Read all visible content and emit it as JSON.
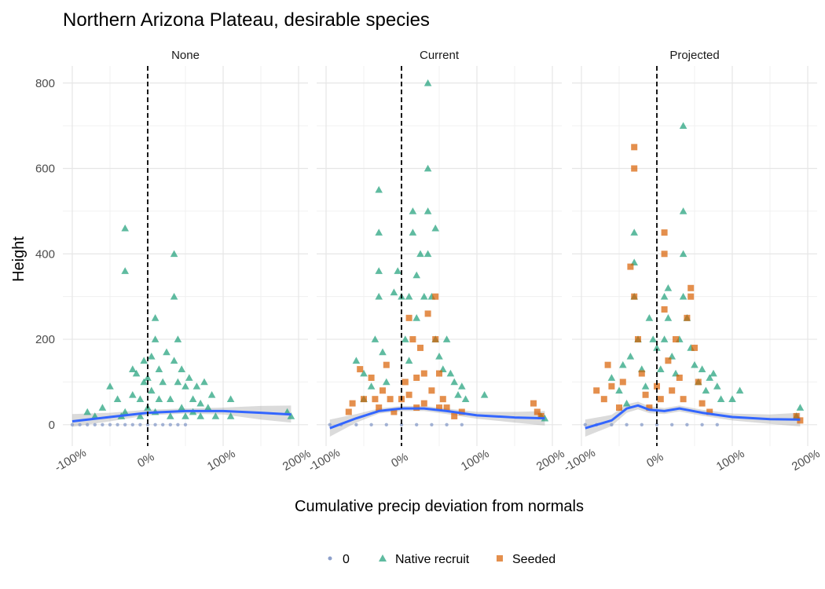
{
  "chart_data": {
    "type": "scatter",
    "title": "Northern Arizona Plateau, desirable species",
    "xlabel": "Cumulative precip deviation from normals",
    "ylabel": "Height",
    "xlim": [
      -1.0,
      2.0
    ],
    "ylim": [
      -50,
      840
    ],
    "x_ticks": [
      -1,
      0,
      1,
      2
    ],
    "x_tick_labels": [
      "-100%",
      "0%",
      "100%",
      "200%"
    ],
    "y_ticks": [
      0,
      200,
      400,
      600,
      800
    ],
    "y_tick_labels": [
      "0",
      "200",
      "400",
      "600",
      "800"
    ],
    "reference_line_x": 0,
    "grid": true,
    "legend_position": "bottom",
    "legend": [
      {
        "label": "0",
        "shape": "circle",
        "color": "#8DA0CB"
      },
      {
        "label": "Native recruit",
        "shape": "triangle",
        "color": "#1B9E77"
      },
      {
        "label": "Seeded",
        "shape": "square",
        "color": "#D95F02"
      }
    ],
    "smooth_color": "#3366FF",
    "panels": [
      {
        "label": "None",
        "zero": [
          [
            -1.0,
            0
          ],
          [
            -0.9,
            0
          ],
          [
            -0.8,
            0
          ],
          [
            -0.7,
            0
          ],
          [
            -0.6,
            0
          ],
          [
            -0.5,
            0
          ],
          [
            -0.4,
            0
          ],
          [
            -0.3,
            0
          ],
          [
            -0.2,
            0
          ],
          [
            -0.1,
            0
          ],
          [
            0.0,
            0
          ],
          [
            0.1,
            0
          ],
          [
            0.2,
            0
          ],
          [
            0.3,
            0
          ],
          [
            0.4,
            0
          ],
          [
            0.5,
            0
          ]
        ],
        "native": [
          [
            -0.8,
            30
          ],
          [
            -0.7,
            20
          ],
          [
            -0.6,
            40
          ],
          [
            -0.5,
            90
          ],
          [
            -0.4,
            60
          ],
          [
            -0.35,
            20
          ],
          [
            -0.3,
            30
          ],
          [
            -0.3,
            460
          ],
          [
            -0.3,
            360
          ],
          [
            -0.2,
            70
          ],
          [
            -0.2,
            130
          ],
          [
            -0.15,
            120
          ],
          [
            -0.1,
            60
          ],
          [
            -0.1,
            20
          ],
          [
            -0.05,
            100
          ],
          [
            -0.05,
            150
          ],
          [
            0.0,
            40
          ],
          [
            0.0,
            110
          ],
          [
            0.05,
            80
          ],
          [
            0.05,
            160
          ],
          [
            0.1,
            250
          ],
          [
            0.1,
            200
          ],
          [
            0.1,
            30
          ],
          [
            0.15,
            130
          ],
          [
            0.15,
            60
          ],
          [
            0.2,
            100
          ],
          [
            0.25,
            170
          ],
          [
            0.3,
            20
          ],
          [
            0.3,
            60
          ],
          [
            0.35,
            300
          ],
          [
            0.35,
            400
          ],
          [
            0.35,
            150
          ],
          [
            0.4,
            200
          ],
          [
            0.4,
            100
          ],
          [
            0.45,
            130
          ],
          [
            0.45,
            40
          ],
          [
            0.5,
            90
          ],
          [
            0.5,
            20
          ],
          [
            0.55,
            110
          ],
          [
            0.6,
            60
          ],
          [
            0.6,
            30
          ],
          [
            0.65,
            90
          ],
          [
            0.7,
            50
          ],
          [
            0.7,
            20
          ],
          [
            0.75,
            100
          ],
          [
            0.8,
            40
          ],
          [
            0.85,
            70
          ],
          [
            0.9,
            20
          ],
          [
            1.1,
            60
          ],
          [
            1.1,
            20
          ],
          [
            1.85,
            30
          ],
          [
            1.9,
            20
          ]
        ],
        "seeded": [],
        "smooth": [
          [
            -1.0,
            8
          ],
          [
            -0.5,
            18
          ],
          [
            0.0,
            28
          ],
          [
            0.5,
            32
          ],
          [
            1.0,
            32
          ],
          [
            1.5,
            28
          ],
          [
            1.9,
            24
          ]
        ],
        "band": [
          [
            -1.0,
            -5,
            25
          ],
          [
            -0.5,
            8,
            28
          ],
          [
            0.0,
            22,
            35
          ],
          [
            0.5,
            26,
            38
          ],
          [
            1.0,
            24,
            40
          ],
          [
            1.5,
            12,
            44
          ],
          [
            1.9,
            5,
            45
          ]
        ]
      },
      {
        "label": "Current",
        "zero": [
          [
            -0.95,
            0
          ],
          [
            -0.8,
            0
          ],
          [
            -0.6,
            0
          ],
          [
            -0.4,
            0
          ],
          [
            -0.2,
            0
          ],
          [
            0.0,
            0
          ],
          [
            0.2,
            0
          ],
          [
            0.4,
            0
          ],
          [
            0.6,
            0
          ],
          [
            0.8,
            0
          ]
        ],
        "native": [
          [
            -0.6,
            150
          ],
          [
            -0.5,
            120
          ],
          [
            -0.5,
            60
          ],
          [
            -0.4,
            90
          ],
          [
            -0.35,
            200
          ],
          [
            -0.3,
            550
          ],
          [
            -0.3,
            450
          ],
          [
            -0.3,
            360
          ],
          [
            -0.3,
            300
          ],
          [
            -0.25,
            170
          ],
          [
            -0.2,
            100
          ],
          [
            -0.1,
            310
          ],
          [
            -0.05,
            360
          ],
          [
            0.0,
            300
          ],
          [
            0.05,
            200
          ],
          [
            0.1,
            300
          ],
          [
            0.1,
            150
          ],
          [
            0.15,
            500
          ],
          [
            0.15,
            450
          ],
          [
            0.2,
            350
          ],
          [
            0.2,
            250
          ],
          [
            0.25,
            400
          ],
          [
            0.3,
            300
          ],
          [
            0.35,
            800
          ],
          [
            0.35,
            600
          ],
          [
            0.35,
            500
          ],
          [
            0.35,
            400
          ],
          [
            0.4,
            300
          ],
          [
            0.45,
            460
          ],
          [
            0.45,
            200
          ],
          [
            0.5,
            160
          ],
          [
            0.55,
            130
          ],
          [
            0.6,
            200
          ],
          [
            0.65,
            120
          ],
          [
            0.7,
            100
          ],
          [
            0.75,
            70
          ],
          [
            0.8,
            90
          ],
          [
            0.85,
            60
          ],
          [
            1.1,
            70
          ],
          [
            1.85,
            20
          ],
          [
            1.9,
            15
          ]
        ],
        "seeded": [
          [
            -0.7,
            30
          ],
          [
            -0.65,
            50
          ],
          [
            -0.55,
            130
          ],
          [
            -0.5,
            60
          ],
          [
            -0.4,
            110
          ],
          [
            -0.35,
            60
          ],
          [
            -0.3,
            40
          ],
          [
            -0.25,
            80
          ],
          [
            -0.2,
            140
          ],
          [
            -0.15,
            60
          ],
          [
            -0.1,
            30
          ],
          [
            0.0,
            60
          ],
          [
            0.05,
            100
          ],
          [
            0.1,
            70
          ],
          [
            0.1,
            250
          ],
          [
            0.15,
            200
          ],
          [
            0.2,
            40
          ],
          [
            0.2,
            110
          ],
          [
            0.25,
            180
          ],
          [
            0.3,
            50
          ],
          [
            0.3,
            120
          ],
          [
            0.35,
            260
          ],
          [
            0.4,
            80
          ],
          [
            0.45,
            300
          ],
          [
            0.45,
            200
          ],
          [
            0.5,
            120
          ],
          [
            0.5,
            40
          ],
          [
            0.55,
            60
          ],
          [
            0.6,
            40
          ],
          [
            0.7,
            20
          ],
          [
            0.8,
            30
          ],
          [
            1.75,
            50
          ],
          [
            1.8,
            30
          ],
          [
            1.85,
            20
          ]
        ],
        "smooth": [
          [
            -0.95,
            -8
          ],
          [
            -0.6,
            15
          ],
          [
            -0.3,
            32
          ],
          [
            0.0,
            38
          ],
          [
            0.3,
            38
          ],
          [
            0.6,
            32
          ],
          [
            1.0,
            22
          ],
          [
            1.5,
            17
          ],
          [
            1.9,
            15
          ]
        ],
        "band": [
          [
            -0.95,
            -28,
            12
          ],
          [
            -0.6,
            5,
            25
          ],
          [
            -0.3,
            26,
            38
          ],
          [
            0.0,
            32,
            44
          ],
          [
            0.3,
            32,
            44
          ],
          [
            0.6,
            25,
            38
          ],
          [
            1.0,
            14,
            30
          ],
          [
            1.5,
            5,
            30
          ],
          [
            1.9,
            -2,
            32
          ]
        ]
      },
      {
        "label": "Projected",
        "zero": [
          [
            -0.95,
            0
          ],
          [
            -0.8,
            0
          ],
          [
            -0.6,
            0
          ],
          [
            -0.4,
            0
          ],
          [
            -0.2,
            0
          ],
          [
            0.0,
            0
          ],
          [
            0.2,
            0
          ],
          [
            0.4,
            0
          ],
          [
            0.6,
            0
          ],
          [
            0.8,
            0
          ]
        ],
        "native": [
          [
            -0.6,
            110
          ],
          [
            -0.5,
            80
          ],
          [
            -0.45,
            140
          ],
          [
            -0.4,
            50
          ],
          [
            -0.35,
            160
          ],
          [
            -0.3,
            450
          ],
          [
            -0.3,
            380
          ],
          [
            -0.3,
            300
          ],
          [
            -0.25,
            200
          ],
          [
            -0.2,
            130
          ],
          [
            -0.15,
            90
          ],
          [
            -0.1,
            250
          ],
          [
            -0.05,
            200
          ],
          [
            0.0,
            180
          ],
          [
            0.05,
            130
          ],
          [
            0.1,
            300
          ],
          [
            0.1,
            200
          ],
          [
            0.15,
            320
          ],
          [
            0.15,
            250
          ],
          [
            0.2,
            160
          ],
          [
            0.25,
            120
          ],
          [
            0.3,
            200
          ],
          [
            0.35,
            700
          ],
          [
            0.35,
            500
          ],
          [
            0.35,
            400
          ],
          [
            0.35,
            300
          ],
          [
            0.4,
            250
          ],
          [
            0.45,
            180
          ],
          [
            0.5,
            140
          ],
          [
            0.55,
            100
          ],
          [
            0.6,
            130
          ],
          [
            0.65,
            80
          ],
          [
            0.7,
            110
          ],
          [
            0.75,
            120
          ],
          [
            0.8,
            90
          ],
          [
            0.85,
            60
          ],
          [
            1.0,
            60
          ],
          [
            1.1,
            80
          ],
          [
            1.9,
            40
          ],
          [
            1.85,
            20
          ]
        ],
        "seeded": [
          [
            -0.8,
            80
          ],
          [
            -0.7,
            60
          ],
          [
            -0.65,
            140
          ],
          [
            -0.6,
            90
          ],
          [
            -0.5,
            40
          ],
          [
            -0.45,
            100
          ],
          [
            -0.35,
            370
          ],
          [
            -0.3,
            650
          ],
          [
            -0.3,
            600
          ],
          [
            -0.3,
            300
          ],
          [
            -0.25,
            200
          ],
          [
            -0.2,
            120
          ],
          [
            -0.15,
            70
          ],
          [
            -0.1,
            40
          ],
          [
            0.0,
            90
          ],
          [
            0.05,
            60
          ],
          [
            0.1,
            450
          ],
          [
            0.1,
            400
          ],
          [
            0.1,
            270
          ],
          [
            0.15,
            150
          ],
          [
            0.2,
            80
          ],
          [
            0.25,
            200
          ],
          [
            0.3,
            110
          ],
          [
            0.35,
            60
          ],
          [
            0.4,
            250
          ],
          [
            0.45,
            320
          ],
          [
            0.45,
            300
          ],
          [
            0.5,
            180
          ],
          [
            0.55,
            100
          ],
          [
            0.6,
            50
          ],
          [
            0.7,
            30
          ],
          [
            1.85,
            20
          ],
          [
            1.9,
            10
          ]
        ],
        "smooth": [
          [
            -0.95,
            -8
          ],
          [
            -0.6,
            10
          ],
          [
            -0.4,
            38
          ],
          [
            -0.25,
            45
          ],
          [
            -0.1,
            35
          ],
          [
            0.1,
            32
          ],
          [
            0.3,
            38
          ],
          [
            0.6,
            28
          ],
          [
            1.0,
            18
          ],
          [
            1.5,
            13
          ],
          [
            1.9,
            12
          ]
        ],
        "band": [
          [
            -0.95,
            -28,
            12
          ],
          [
            -0.6,
            -3,
            23
          ],
          [
            -0.4,
            28,
            48
          ],
          [
            -0.25,
            36,
            54
          ],
          [
            -0.1,
            27,
            43
          ],
          [
            0.1,
            25,
            39
          ],
          [
            0.3,
            31,
            45
          ],
          [
            0.6,
            21,
            35
          ],
          [
            1.0,
            10,
            26
          ],
          [
            1.5,
            2,
            24
          ],
          [
            1.9,
            -4,
            28
          ]
        ]
      }
    ]
  }
}
